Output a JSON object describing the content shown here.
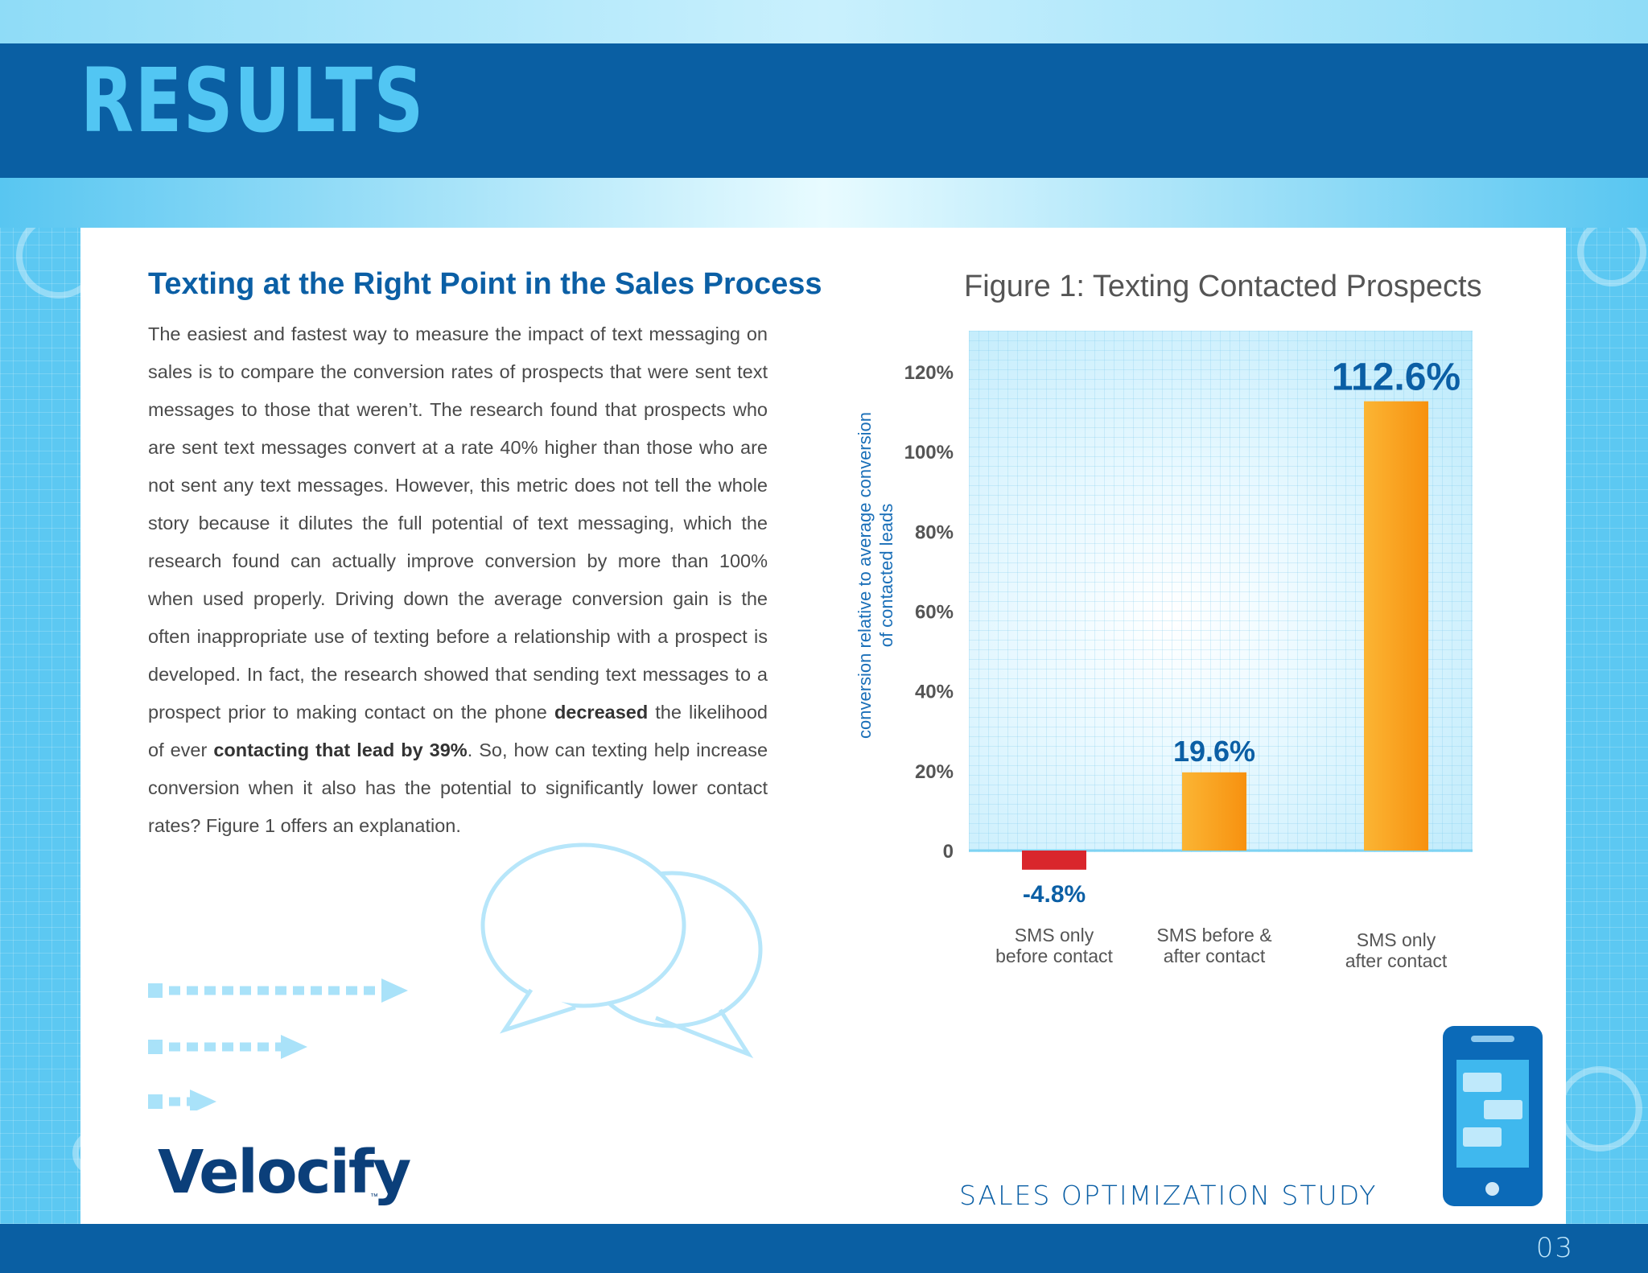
{
  "header": {
    "title": "RESULTS"
  },
  "article": {
    "heading": "Texting at the Right Point in the Sales Process",
    "body_1": "The easiest and fastest way to measure the impact of text messaging on sales is to compare the conversion rates of prospects that were sent text messages to those that weren’t. The research found that prospects who are sent text messages convert at a rate 40% higher than those who are not sent any text messages. However, this metric does not tell the whole story because it dilutes the full potential of text messaging, which the research found can actually improve conversion by more than 100% when used properly. Driving down the average conversion gain is the often inappropriate use of texting before a relationship with a prospect is developed.  In fact, the research showed that sending text messages to a prospect prior to making contact on the phone ",
    "bold_1": "decreased",
    "body_2": " the likelihood of ever ",
    "bold_2": "contacting that lead by 39%",
    "body_3": ". So, how can texting help increase conversion when it also has the potential to significantly lower contact rates? Figure 1 offers an explanation."
  },
  "figure": {
    "title": "Figure 1: Texting Contacted Prospects"
  },
  "chart_data": {
    "type": "bar",
    "title": "Figure 1: Texting Contacted Prospects",
    "ylabel": "conversion relative to average conversion of contacted leads",
    "ylabel_lines": [
      "conversion relative to average conversion",
      "of contacted leads"
    ],
    "xlabel": "",
    "categories": [
      [
        "SMS only",
        "before contact"
      ],
      [
        "SMS before &",
        "after contact"
      ],
      [
        "SMS only",
        "after contact"
      ]
    ],
    "values": [
      -4.8,
      19.6,
      112.6
    ],
    "value_labels": [
      "-4.8%",
      "19.6%",
      "112.6%"
    ],
    "yticks": [
      "0",
      "20%",
      "40%",
      "60%",
      "80%",
      "100%",
      "120%"
    ],
    "ylim": [
      0,
      120
    ],
    "grid": true,
    "bar_colors": [
      "#d9262c",
      "#f9a11b",
      "#f9a11b"
    ],
    "label_color": "#0b5fa5"
  },
  "footer": {
    "study": "SALES OPTIMIZATION STUDY",
    "page": "03",
    "logo": "Velocify",
    "logo_tm": "™"
  },
  "colors": {
    "header_band": "#0a5fa3",
    "title": "#52c6f3",
    "accent": "#0b5fa5",
    "background": "#5cc8f2"
  },
  "icons": [
    "gear-icon",
    "chat-bubbles-icon",
    "arrow-icon",
    "phone-icon"
  ]
}
